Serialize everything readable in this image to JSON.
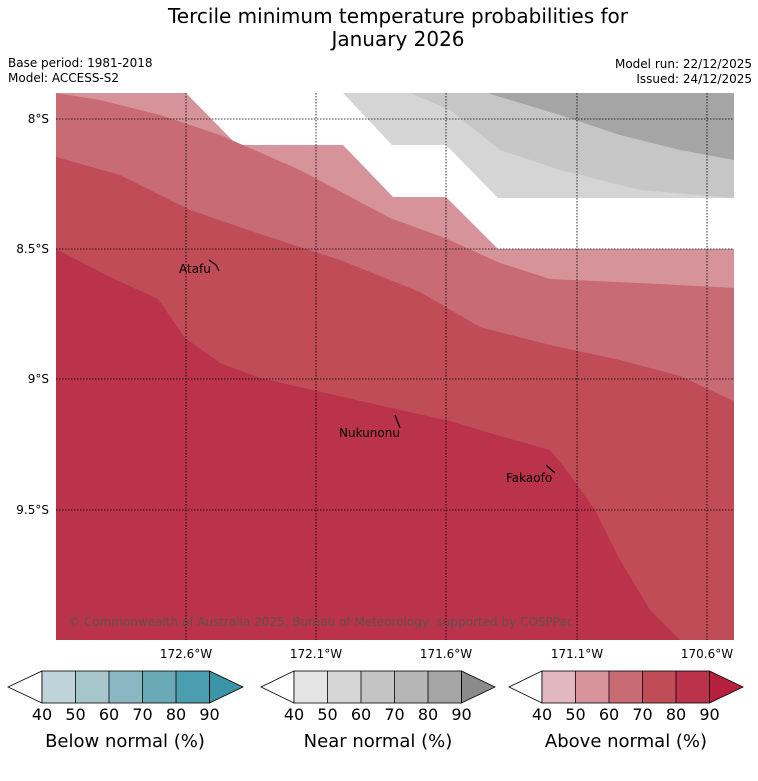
{
  "title": {
    "line1": "Tercile minimum temperature probabilities for",
    "line2": "January 2026"
  },
  "meta": {
    "base_period": "Base period: 1981-2018",
    "model": "Model: ACCESS-S2",
    "model_run": "Model run: 22/12/2025",
    "issued": "Issued: 24/12/2025"
  },
  "map": {
    "lat_labels": [
      "8°S",
      "8.5°S",
      "9°S",
      "9.5°S"
    ],
    "lon_labels": [
      "172.6°W",
      "172.1°W",
      "171.6°W",
      "171.1°W",
      "170.6°W"
    ],
    "places": {
      "atafu": "Atafu",
      "nukunonu": "Nukunonu",
      "fakaofo": "Fakaofo"
    },
    "copyright": "© Commonwealth of Australia 2025, Bureau of Meteorology, supported by COSPPac"
  },
  "colorbars": {
    "ticks": [
      "40",
      "50",
      "60",
      "70",
      "80",
      "90"
    ],
    "below": {
      "title": "Below normal (%)",
      "colors": [
        "#ffffff",
        "#bed4da",
        "#a7c6cb",
        "#8bb7c2",
        "#6aa9b6",
        "#4b9eaf",
        "#3a93a6"
      ]
    },
    "near": {
      "title": "Near normal (%)",
      "colors": [
        "#ffffff",
        "#e5e5e5",
        "#d5d5d5",
        "#c4c4c4",
        "#b6b6b6",
        "#a5a5a5",
        "#8a8a8a"
      ]
    },
    "above": {
      "title": "Above normal (%)",
      "colors": [
        "#ffffff",
        "#e2b7bd",
        "#d6939a",
        "#c96b74",
        "#c04c58",
        "#ba334a",
        "#b6203e"
      ]
    }
  }
}
